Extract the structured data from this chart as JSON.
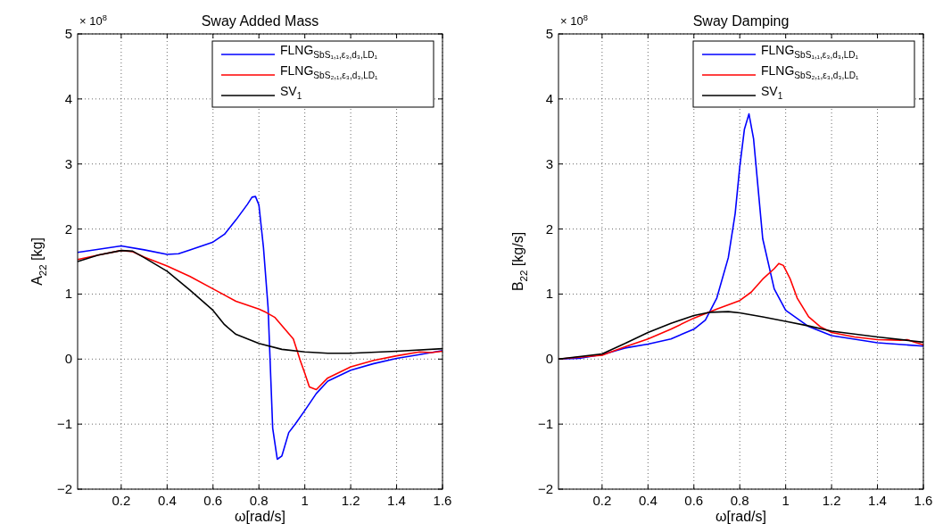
{
  "chart_data": [
    {
      "type": "line",
      "title": "Sway Added Mass",
      "xlabel": "ω[rad/s]",
      "ylabel": "A$_{22}$ [kg]",
      "annotations": [
        "× 10$^{8}$"
      ],
      "xlim": [
        0.01,
        1.6
      ],
      "xticks": [
        0.2,
        0.4,
        0.6,
        0.8,
        1,
        1.2,
        1.4,
        1.6
      ],
      "ylim": [
        -2,
        5
      ],
      "yticks": [
        -2,
        -1,
        0,
        1,
        2,
        3,
        4,
        5
      ],
      "grid": true,
      "legend": "top right",
      "line_style": "solid",
      "marker": "none",
      "series": [
        {
          "name": "FLNG$_{SbS₁,₁,ε₃,d₃,LD₁}$",
          "color": "#0000ff",
          "x": [
            0.01,
            0.2,
            0.3,
            0.4,
            0.45,
            0.5,
            0.6,
            0.65,
            0.7,
            0.75,
            0.77,
            0.785,
            0.8,
            0.82,
            0.84,
            0.86,
            0.88,
            0.9,
            0.93,
            0.96,
            1.0,
            1.05,
            1.1,
            1.2,
            1.3,
            1.4,
            1.5,
            1.6
          ],
          "values": [
            1.64,
            1.74,
            1.68,
            1.61,
            1.62,
            1.68,
            1.8,
            1.92,
            2.14,
            2.38,
            2.49,
            2.5,
            2.37,
            1.71,
            0.79,
            -1.06,
            -1.54,
            -1.49,
            -1.13,
            -0.99,
            -0.79,
            -0.53,
            -0.34,
            -0.17,
            -0.07,
            0.01,
            0.07,
            0.13
          ]
        },
        {
          "name": "FLNG$_{SbS₂,₁,ε₃,d₃,LD₁}$",
          "color": "#ff0000",
          "x": [
            0.01,
            0.1,
            0.2,
            0.25,
            0.3,
            0.4,
            0.5,
            0.6,
            0.7,
            0.8,
            0.83,
            0.87,
            0.95,
            0.98,
            1.0,
            1.02,
            1.05,
            1.1,
            1.2,
            1.3,
            1.4,
            1.5,
            1.55,
            1.6
          ],
          "values": [
            1.53,
            1.6,
            1.67,
            1.65,
            1.57,
            1.43,
            1.27,
            1.08,
            0.89,
            0.77,
            0.72,
            0.64,
            0.31,
            -0.02,
            -0.22,
            -0.43,
            -0.47,
            -0.29,
            -0.12,
            -0.02,
            0.05,
            0.11,
            0.1,
            0.12
          ]
        },
        {
          "name": "SV$_{1}$",
          "color": "#000000",
          "x": [
            0.01,
            0.1,
            0.2,
            0.25,
            0.3,
            0.4,
            0.5,
            0.6,
            0.65,
            0.7,
            0.8,
            0.9,
            1.0,
            1.1,
            1.2,
            1.4,
            1.6
          ],
          "values": [
            1.5,
            1.6,
            1.67,
            1.66,
            1.56,
            1.35,
            1.06,
            0.75,
            0.53,
            0.38,
            0.24,
            0.15,
            0.11,
            0.09,
            0.09,
            0.12,
            0.16
          ]
        }
      ]
    },
    {
      "type": "line",
      "title": "Sway Damping",
      "xlabel": "ω[rad/s]",
      "ylabel": "B$_{22}$ [kg/s]",
      "annotations": [
        "× 10$^{8}$"
      ],
      "xlim": [
        0.01,
        1.6
      ],
      "xticks": [
        0.2,
        0.4,
        0.6,
        0.8,
        1,
        1.2,
        1.4,
        1.6
      ],
      "ylim": [
        -2,
        5
      ],
      "yticks": [
        -2,
        -1,
        0,
        1,
        2,
        3,
        4,
        5
      ],
      "grid": true,
      "legend": "top right",
      "line_style": "solid",
      "marker": "none",
      "series": [
        {
          "name": "FLNG$_{SbS₁,₁,ε₃,d₃,LD₁}$",
          "color": "#0000ff",
          "x": [
            0.01,
            0.1,
            0.2,
            0.3,
            0.4,
            0.5,
            0.6,
            0.65,
            0.7,
            0.75,
            0.78,
            0.8,
            0.82,
            0.84,
            0.86,
            0.88,
            0.9,
            0.95,
            1.0,
            1.1,
            1.2,
            1.4,
            1.6
          ],
          "values": [
            0,
            0.01,
            0.07,
            0.17,
            0.23,
            0.31,
            0.46,
            0.6,
            0.94,
            1.56,
            2.24,
            2.96,
            3.53,
            3.77,
            3.39,
            2.62,
            1.85,
            1.08,
            0.75,
            0.5,
            0.36,
            0.25,
            0.2
          ]
        },
        {
          "name": "FLNG$_{SbS₂,₁,ε₃,d₃,LD₁}$",
          "color": "#ff0000",
          "x": [
            0.01,
            0.2,
            0.3,
            0.4,
            0.5,
            0.6,
            0.7,
            0.8,
            0.85,
            0.9,
            0.95,
            0.97,
            0.99,
            1.02,
            1.05,
            1.1,
            1.15,
            1.2,
            1.3,
            1.4,
            1.5,
            1.53,
            1.56,
            1.6
          ],
          "values": [
            0,
            0.06,
            0.19,
            0.31,
            0.46,
            0.63,
            0.77,
            0.9,
            1.03,
            1.23,
            1.39,
            1.47,
            1.44,
            1.23,
            0.94,
            0.65,
            0.5,
            0.41,
            0.34,
            0.3,
            0.29,
            0.3,
            0.26,
            0.22
          ]
        },
        {
          "name": "SV$_{1}$",
          "color": "#000000",
          "x": [
            0.01,
            0.2,
            0.3,
            0.4,
            0.5,
            0.6,
            0.67,
            0.75,
            0.8,
            0.9,
            1.0,
            1.1,
            1.2,
            1.4,
            1.6
          ],
          "values": [
            0,
            0.08,
            0.24,
            0.41,
            0.55,
            0.67,
            0.72,
            0.73,
            0.71,
            0.65,
            0.58,
            0.51,
            0.43,
            0.34,
            0.26
          ]
        }
      ]
    }
  ]
}
